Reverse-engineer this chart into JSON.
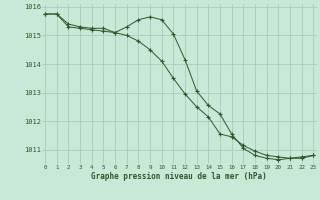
{
  "line1": {
    "x": [
      0,
      1,
      2,
      3,
      4,
      5,
      6,
      7,
      8,
      9,
      10,
      11,
      12,
      13,
      14,
      15,
      16,
      17,
      18,
      19,
      20,
      21,
      22,
      23
    ],
    "y": [
      1015.75,
      1015.75,
      1015.4,
      1015.3,
      1015.25,
      1015.25,
      1015.1,
      1015.3,
      1015.55,
      1015.65,
      1015.55,
      1015.05,
      1014.15,
      1013.05,
      1012.55,
      1012.25,
      1011.55,
      1011.05,
      1010.8,
      1010.7,
      1010.65,
      1010.7,
      1010.75,
      1010.8
    ]
  },
  "line2": {
    "x": [
      0,
      1,
      2,
      3,
      4,
      5,
      6,
      7,
      8,
      9,
      10,
      11,
      12,
      13,
      14,
      15,
      16,
      17,
      18,
      19,
      20,
      21,
      22,
      23
    ],
    "y": [
      1015.75,
      1015.75,
      1015.3,
      1015.25,
      1015.2,
      1015.15,
      1015.1,
      1015.0,
      1014.8,
      1014.5,
      1014.1,
      1013.5,
      1012.95,
      1012.5,
      1012.15,
      1011.55,
      1011.45,
      1011.15,
      1010.95,
      1010.8,
      1010.75,
      1010.7,
      1010.7,
      1010.8
    ]
  },
  "bg_color": "#c8e8d8",
  "grid_color": "#a0c8b0",
  "line_color": "#2d5a27",
  "xlabel": "Graphe pression niveau de la mer (hPa)",
  "ylim": [
    1010.5,
    1016.1
  ],
  "xlim": [
    -0.3,
    23.3
  ],
  "yticks": [
    1011,
    1012,
    1013,
    1014,
    1015,
    1016
  ],
  "xticks": [
    0,
    1,
    2,
    3,
    4,
    5,
    6,
    7,
    8,
    9,
    10,
    11,
    12,
    13,
    14,
    15,
    16,
    17,
    18,
    19,
    20,
    21,
    22,
    23
  ],
  "xlabel_fontsize": 5.5,
  "ytick_fontsize": 5.0,
  "xtick_fontsize": 4.2,
  "linewidth": 0.7,
  "markersize": 2.8,
  "markeredgewidth": 0.8
}
